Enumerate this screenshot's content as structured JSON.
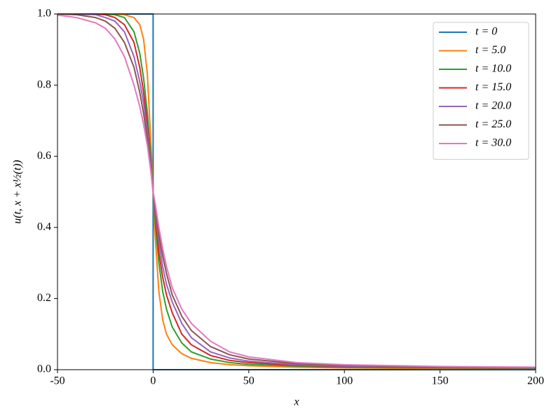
{
  "chart_data": {
    "type": "line",
    "x_label": "x",
    "y_label": "u(t, x + x½(t))",
    "xlim": [
      -50,
      200
    ],
    "xticks": [
      -50,
      0,
      50,
      100,
      150,
      200
    ],
    "ylim": [
      0,
      1
    ],
    "yticks": [
      {
        "value": 0,
        "label": "0.0"
      },
      0.2,
      0.4,
      0.6,
      0.8,
      {
        "value": 1,
        "label": "1.0"
      }
    ],
    "grid": false,
    "legend": "upper right",
    "series": [
      {
        "name": "t = 0",
        "color": "#1f77b4",
        "x": [
          -50,
          0,
          0,
          200
        ],
        "values": [
          1,
          1,
          0,
          0
        ]
      },
      {
        "name": "t = 5.0",
        "color": "#ff7f0e",
        "x": [
          -50,
          -40,
          -30,
          -25,
          -20,
          -15,
          -10,
          -7,
          -5,
          -3,
          -1,
          0,
          1,
          3,
          5,
          7,
          10,
          15,
          20,
          30,
          40,
          50,
          75,
          100,
          150,
          200
        ],
        "values": [
          1,
          1,
          1,
          1,
          1,
          0.998,
          0.99,
          0.97,
          0.93,
          0.83,
          0.62,
          0.5,
          0.38,
          0.22,
          0.14,
          0.1,
          0.07,
          0.045,
          0.032,
          0.02,
          0.014,
          0.011,
          0.007,
          0.005,
          0.003,
          0.002
        ]
      },
      {
        "name": "t = 10.0",
        "color": "#2ca02c",
        "x": [
          -50,
          -40,
          -30,
          -25,
          -20,
          -15,
          -10,
          -7,
          -5,
          -3,
          -1,
          0,
          1,
          3,
          5,
          7,
          10,
          15,
          20,
          30,
          40,
          50,
          75,
          100,
          150,
          200
        ],
        "values": [
          1,
          1,
          1,
          1,
          0.998,
          0.99,
          0.95,
          0.89,
          0.82,
          0.72,
          0.58,
          0.5,
          0.42,
          0.3,
          0.22,
          0.17,
          0.12,
          0.075,
          0.05,
          0.03,
          0.02,
          0.015,
          0.01,
          0.007,
          0.005,
          0.004
        ]
      },
      {
        "name": "t = 15.0",
        "color": "#d62728",
        "x": [
          -50,
          -40,
          -30,
          -25,
          -20,
          -15,
          -10,
          -7,
          -5,
          -3,
          -1,
          0,
          1,
          3,
          5,
          7,
          10,
          15,
          20,
          30,
          40,
          50,
          75,
          100,
          150,
          200
        ],
        "values": [
          1,
          1,
          1,
          0.998,
          0.99,
          0.97,
          0.92,
          0.85,
          0.78,
          0.69,
          0.56,
          0.5,
          0.44,
          0.33,
          0.26,
          0.21,
          0.16,
          0.1,
          0.07,
          0.04,
          0.026,
          0.02,
          0.012,
          0.009,
          0.006,
          0.005
        ]
      },
      {
        "name": "t = 20.0",
        "color": "#9467bd",
        "x": [
          -50,
          -40,
          -30,
          -25,
          -20,
          -15,
          -10,
          -7,
          -5,
          -3,
          -1,
          0,
          1,
          3,
          5,
          7,
          10,
          15,
          20,
          30,
          40,
          50,
          75,
          100,
          150,
          200
        ],
        "values": [
          1,
          1,
          0.998,
          0.99,
          0.98,
          0.95,
          0.88,
          0.81,
          0.75,
          0.67,
          0.56,
          0.5,
          0.45,
          0.36,
          0.29,
          0.24,
          0.19,
          0.13,
          0.09,
          0.05,
          0.033,
          0.024,
          0.014,
          0.01,
          0.007,
          0.005
        ]
      },
      {
        "name": "t = 25.0",
        "color": "#8c564b",
        "x": [
          -50,
          -40,
          -30,
          -25,
          -20,
          -15,
          -10,
          -7,
          -5,
          -3,
          -1,
          0,
          1,
          3,
          5,
          7,
          10,
          15,
          20,
          30,
          40,
          50,
          75,
          100,
          150,
          200
        ],
        "values": [
          1,
          0.998,
          0.99,
          0.98,
          0.96,
          0.92,
          0.85,
          0.78,
          0.72,
          0.65,
          0.55,
          0.5,
          0.46,
          0.38,
          0.32,
          0.27,
          0.21,
          0.15,
          0.11,
          0.065,
          0.042,
          0.03,
          0.017,
          0.012,
          0.008,
          0.006
        ]
      },
      {
        "name": "t = 30.0",
        "color": "#e377c2",
        "x": [
          -50,
          -40,
          -30,
          -25,
          -20,
          -15,
          -10,
          -7,
          -5,
          -3,
          -1,
          0,
          1,
          3,
          5,
          7,
          10,
          15,
          20,
          30,
          40,
          50,
          75,
          100,
          150,
          200
        ],
        "values": [
          0.997,
          0.99,
          0.975,
          0.96,
          0.93,
          0.88,
          0.8,
          0.74,
          0.69,
          0.63,
          0.55,
          0.5,
          0.47,
          0.4,
          0.34,
          0.29,
          0.23,
          0.17,
          0.13,
          0.08,
          0.05,
          0.036,
          0.02,
          0.014,
          0.009,
          0.007
        ]
      }
    ]
  }
}
